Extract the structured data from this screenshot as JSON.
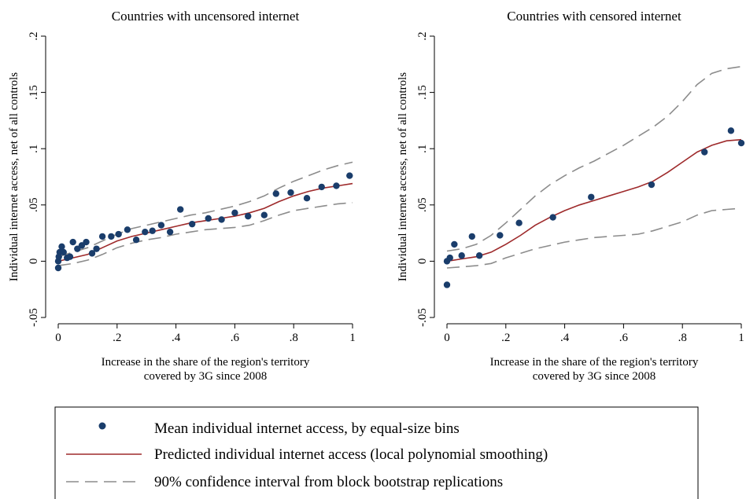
{
  "chart_data": [
    {
      "type": "scatter",
      "title": "Countries with uncensored internet",
      "xlabel": [
        "Increase in the share of the region's territory",
        "covered by 3G since 2008"
      ],
      "ylabel": "Individual internet access, net of all controls",
      "xlim": [
        0,
        1
      ],
      "ylim": [
        -0.05,
        0.2
      ],
      "x_ticks": [
        0,
        0.2,
        0.4,
        0.6,
        0.8,
        1
      ],
      "x_tick_labels": [
        "0",
        ".2",
        ".4",
        ".6",
        ".8",
        "1"
      ],
      "y_ticks": [
        -0.05,
        0,
        0.05,
        0.1,
        0.15,
        0.2
      ],
      "y_tick_labels": [
        "-.05",
        "0",
        ".05",
        ".1",
        ".15",
        ".2"
      ],
      "grid": false,
      "series": [
        {
          "kind": "points",
          "points": [
            [
              0,
              -0.006
            ],
            [
              0,
              0.0
            ],
            [
              0.002,
              0.004
            ],
            [
              0.005,
              0.008
            ],
            [
              0.012,
              0.013
            ],
            [
              0.018,
              0.008
            ],
            [
              0.03,
              0.003
            ],
            [
              0.04,
              0.004
            ],
            [
              0.05,
              0.017
            ],
            [
              0.065,
              0.011
            ],
            [
              0.08,
              0.014
            ],
            [
              0.095,
              0.017
            ],
            [
              0.115,
              0.007
            ],
            [
              0.13,
              0.011
            ],
            [
              0.15,
              0.022
            ],
            [
              0.18,
              0.022
            ],
            [
              0.205,
              0.024
            ],
            [
              0.235,
              0.028
            ],
            [
              0.265,
              0.019
            ],
            [
              0.295,
              0.026
            ],
            [
              0.32,
              0.027
            ],
            [
              0.35,
              0.032
            ],
            [
              0.38,
              0.026
            ],
            [
              0.415,
              0.046
            ],
            [
              0.455,
              0.033
            ],
            [
              0.51,
              0.038
            ],
            [
              0.555,
              0.037
            ],
            [
              0.6,
              0.043
            ],
            [
              0.645,
              0.04
            ],
            [
              0.7,
              0.041
            ],
            [
              0.74,
              0.06
            ],
            [
              0.79,
              0.061
            ],
            [
              0.845,
              0.056
            ],
            [
              0.895,
              0.066
            ],
            [
              0.945,
              0.067
            ],
            [
              0.99,
              0.076
            ]
          ]
        },
        {
          "kind": "fit",
          "points": [
            [
              0,
              0.0
            ],
            [
              0.05,
              0.003
            ],
            [
              0.1,
              0.006
            ],
            [
              0.15,
              0.012
            ],
            [
              0.2,
              0.018
            ],
            [
              0.25,
              0.022
            ],
            [
              0.3,
              0.025
            ],
            [
              0.35,
              0.028
            ],
            [
              0.4,
              0.031
            ],
            [
              0.45,
              0.034
            ],
            [
              0.5,
              0.036
            ],
            [
              0.55,
              0.038
            ],
            [
              0.6,
              0.04
            ],
            [
              0.65,
              0.043
            ],
            [
              0.7,
              0.047
            ],
            [
              0.75,
              0.053
            ],
            [
              0.8,
              0.058
            ],
            [
              0.85,
              0.062
            ],
            [
              0.9,
              0.065
            ],
            [
              0.95,
              0.067
            ],
            [
              1,
              0.069
            ]
          ]
        },
        {
          "kind": "ci_upper",
          "points": [
            [
              0,
              0.004
            ],
            [
              0.05,
              0.008
            ],
            [
              0.1,
              0.012
            ],
            [
              0.15,
              0.018
            ],
            [
              0.2,
              0.024
            ],
            [
              0.25,
              0.029
            ],
            [
              0.3,
              0.032
            ],
            [
              0.35,
              0.035
            ],
            [
              0.4,
              0.038
            ],
            [
              0.45,
              0.041
            ],
            [
              0.5,
              0.043
            ],
            [
              0.55,
              0.046
            ],
            [
              0.6,
              0.049
            ],
            [
              0.65,
              0.053
            ],
            [
              0.7,
              0.058
            ],
            [
              0.75,
              0.065
            ],
            [
              0.8,
              0.071
            ],
            [
              0.85,
              0.076
            ],
            [
              0.9,
              0.081
            ],
            [
              0.95,
              0.085
            ],
            [
              1,
              0.088
            ]
          ]
        },
        {
          "kind": "ci_lower",
          "points": [
            [
              0,
              -0.004
            ],
            [
              0.05,
              -0.002
            ],
            [
              0.1,
              0.001
            ],
            [
              0.15,
              0.006
            ],
            [
              0.2,
              0.012
            ],
            [
              0.25,
              0.016
            ],
            [
              0.3,
              0.019
            ],
            [
              0.35,
              0.021
            ],
            [
              0.4,
              0.024
            ],
            [
              0.45,
              0.026
            ],
            [
              0.5,
              0.028
            ],
            [
              0.55,
              0.029
            ],
            [
              0.6,
              0.03
            ],
            [
              0.65,
              0.032
            ],
            [
              0.7,
              0.036
            ],
            [
              0.75,
              0.041
            ],
            [
              0.8,
              0.045
            ],
            [
              0.85,
              0.047
            ],
            [
              0.9,
              0.049
            ],
            [
              0.95,
              0.051
            ],
            [
              1,
              0.052
            ]
          ]
        }
      ]
    },
    {
      "type": "scatter",
      "title": "Countries with censored internet",
      "xlabel": [
        "Increase in the share of the region's territory",
        "covered by 3G since 2008"
      ],
      "ylabel": "Individual internet access, net of all controls",
      "xlim": [
        0,
        1
      ],
      "ylim": [
        -0.05,
        0.2
      ],
      "x_ticks": [
        0,
        0.2,
        0.4,
        0.6,
        0.8,
        1
      ],
      "x_tick_labels": [
        "0",
        ".2",
        ".4",
        ".6",
        ".8",
        "1"
      ],
      "y_ticks": [
        -0.05,
        0,
        0.05,
        0.1,
        0.15,
        0.2
      ],
      "y_tick_labels": [
        "-.05",
        "0",
        ".05",
        ".1",
        ".15",
        ".2"
      ],
      "grid": false,
      "series": [
        {
          "kind": "points",
          "points": [
            [
              0,
              -0.021
            ],
            [
              0,
              0.0
            ],
            [
              0.01,
              0.003
            ],
            [
              0.025,
              0.015
            ],
            [
              0.05,
              0.005
            ],
            [
              0.085,
              0.022
            ],
            [
              0.11,
              0.005
            ],
            [
              0.18,
              0.023
            ],
            [
              0.245,
              0.034
            ],
            [
              0.36,
              0.039
            ],
            [
              0.49,
              0.057
            ],
            [
              0.695,
              0.068
            ],
            [
              0.875,
              0.097
            ],
            [
              0.965,
              0.116
            ],
            [
              1,
              0.105
            ]
          ]
        },
        {
          "kind": "fit",
          "points": [
            [
              0,
              0.0
            ],
            [
              0.05,
              0.002
            ],
            [
              0.1,
              0.004
            ],
            [
              0.15,
              0.008
            ],
            [
              0.2,
              0.015
            ],
            [
              0.25,
              0.023
            ],
            [
              0.3,
              0.032
            ],
            [
              0.35,
              0.039
            ],
            [
              0.4,
              0.045
            ],
            [
              0.45,
              0.05
            ],
            [
              0.5,
              0.054
            ],
            [
              0.55,
              0.058
            ],
            [
              0.6,
              0.062
            ],
            [
              0.65,
              0.066
            ],
            [
              0.7,
              0.071
            ],
            [
              0.75,
              0.079
            ],
            [
              0.8,
              0.088
            ],
            [
              0.85,
              0.097
            ],
            [
              0.9,
              0.103
            ],
            [
              0.95,
              0.107
            ],
            [
              1,
              0.108
            ]
          ]
        },
        {
          "kind": "ci_upper",
          "points": [
            [
              0,
              0.009
            ],
            [
              0.05,
              0.011
            ],
            [
              0.1,
              0.015
            ],
            [
              0.15,
              0.023
            ],
            [
              0.2,
              0.034
            ],
            [
              0.25,
              0.046
            ],
            [
              0.3,
              0.058
            ],
            [
              0.35,
              0.068
            ],
            [
              0.4,
              0.076
            ],
            [
              0.45,
              0.083
            ],
            [
              0.5,
              0.089
            ],
            [
              0.55,
              0.096
            ],
            [
              0.6,
              0.103
            ],
            [
              0.65,
              0.111
            ],
            [
              0.7,
              0.119
            ],
            [
              0.75,
              0.129
            ],
            [
              0.8,
              0.142
            ],
            [
              0.85,
              0.157
            ],
            [
              0.9,
              0.167
            ],
            [
              0.95,
              0.171
            ],
            [
              1,
              0.173
            ]
          ]
        },
        {
          "kind": "ci_lower",
          "points": [
            [
              0,
              -0.006
            ],
            [
              0.05,
              -0.005
            ],
            [
              0.1,
              -0.004
            ],
            [
              0.15,
              -0.002
            ],
            [
              0.2,
              0.003
            ],
            [
              0.25,
              0.007
            ],
            [
              0.3,
              0.011
            ],
            [
              0.35,
              0.014
            ],
            [
              0.4,
              0.017
            ],
            [
              0.45,
              0.019
            ],
            [
              0.5,
              0.021
            ],
            [
              0.55,
              0.022
            ],
            [
              0.6,
              0.023
            ],
            [
              0.65,
              0.024
            ],
            [
              0.7,
              0.027
            ],
            [
              0.75,
              0.031
            ],
            [
              0.8,
              0.035
            ],
            [
              0.85,
              0.041
            ],
            [
              0.9,
              0.045
            ],
            [
              0.95,
              0.046
            ],
            [
              1,
              0.047
            ]
          ]
        }
      ]
    }
  ],
  "legend": {
    "items": [
      {
        "marker": "dot",
        "label": "Mean individual internet access, by equal-size bins"
      },
      {
        "marker": "solid-line",
        "label": "Predicted individual internet access (local polynomial smoothing)"
      },
      {
        "marker": "dashed-line",
        "label": "90% confidence interval from block bootstrap replications"
      }
    ]
  },
  "colors": {
    "points": "#1a3d6b",
    "fit": "#9e2a2b",
    "ci": "#8c8c8c",
    "axis": "#000000"
  }
}
